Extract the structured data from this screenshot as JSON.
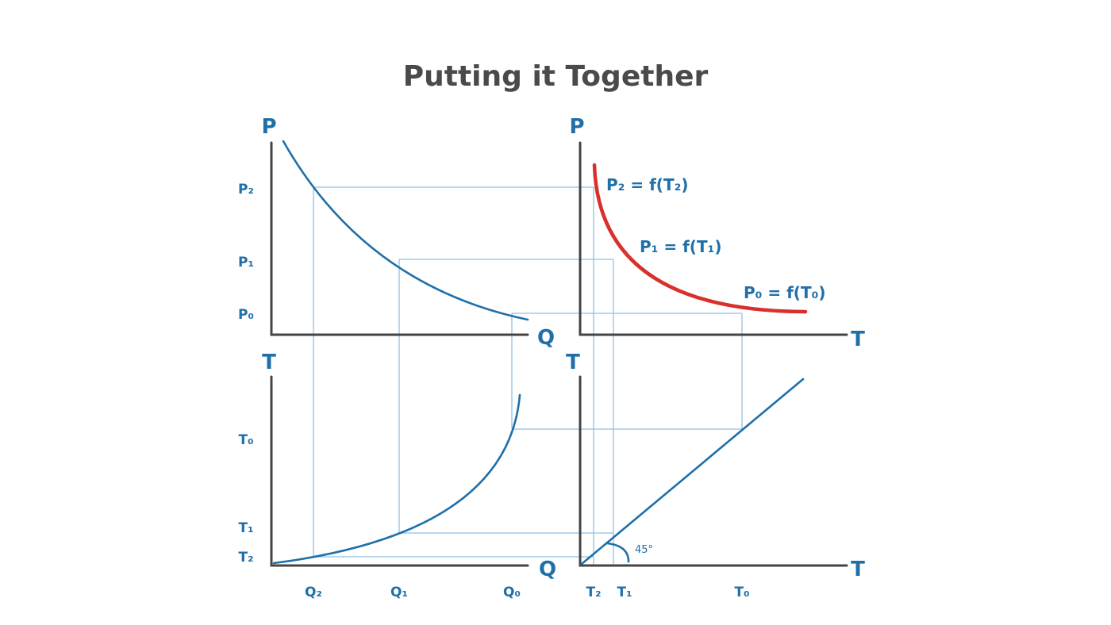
{
  "title": "Putting it Together",
  "panels": {
    "top_left": {
      "y_axis": "P",
      "x_axis": "Q",
      "y_ticks": [
        "P₂",
        "P₁",
        "P₀"
      ]
    },
    "top_right": {
      "y_axis": "P",
      "x_axis": "T",
      "annotations": [
        "P₂ = f(T₂)",
        "P₁ = f(T₁)",
        "P₀ = f(T₀)"
      ]
    },
    "bottom_left": {
      "y_axis": "T",
      "x_axis": "Q",
      "y_ticks": [
        "T₀",
        "T₁",
        "T₂"
      ],
      "x_ticks": [
        "Q₂",
        "Q₁",
        "Q₀"
      ]
    },
    "bottom_right": {
      "y_axis": "T",
      "x_axis": "T",
      "x_ticks": [
        "T₂",
        "T₁",
        "T₀"
      ],
      "angle_label": "45°"
    }
  },
  "colors": {
    "axis": "#444444",
    "curve": "#1f6fa8",
    "guide": "#8ec1e6",
    "highlight_curve": "#d9302b",
    "title": "#4a4a4a"
  }
}
